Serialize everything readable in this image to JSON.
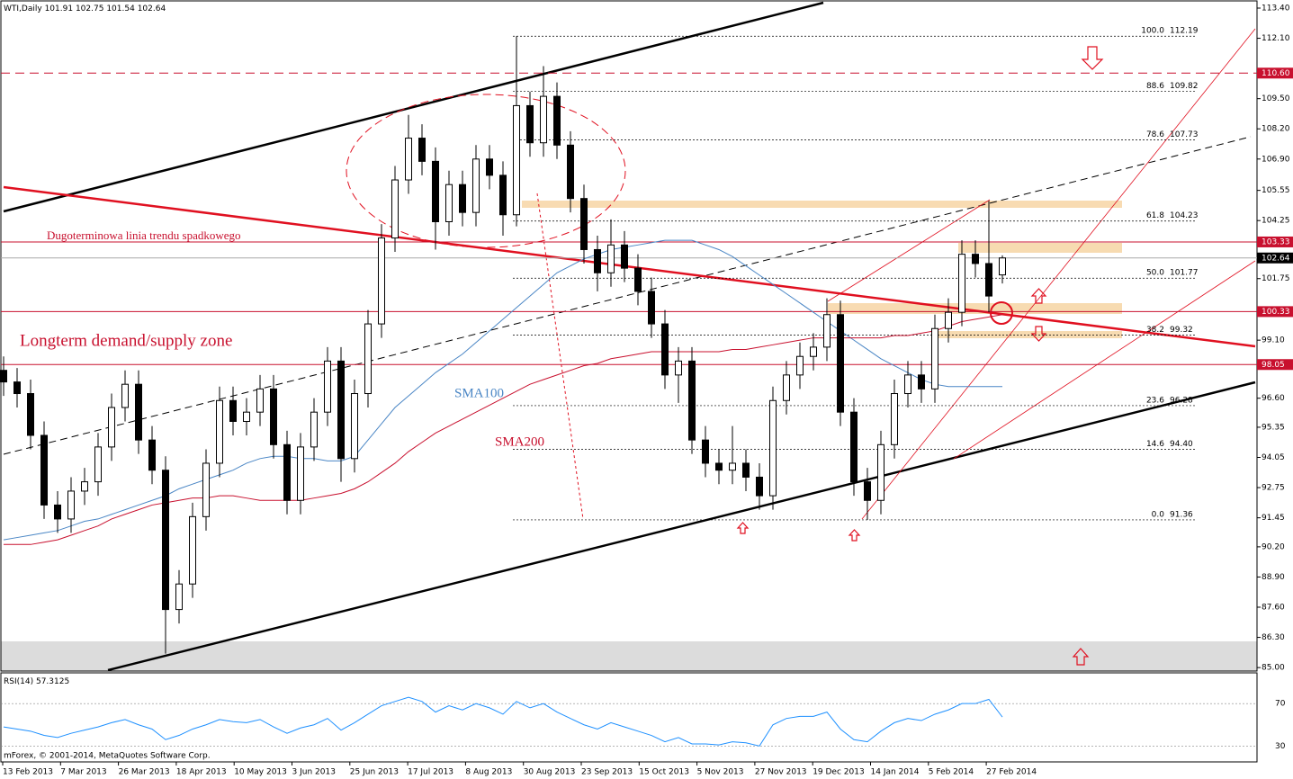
{
  "chart_data": {
    "type": "candlestick",
    "title": "WTI,Daily",
    "open": [
      97.8,
      97.3,
      96.8,
      95.0,
      92.0,
      91.4,
      92.6,
      93.0,
      94.5,
      96.2,
      97.2,
      94.8,
      93.5,
      87.5,
      88.6,
      91.5,
      93.8,
      96.5,
      95.6,
      96.0,
      97.0,
      94.6,
      92.2,
      94.5,
      96.0,
      98.2,
      94.0,
      96.8,
      99.8,
      103.5,
      106.0,
      107.8,
      106.8,
      104.2,
      105.8,
      104.6,
      106.9,
      106.2,
      104.5,
      109.2,
      107.6,
      109.6,
      107.5,
      105.2,
      103.0,
      102.0,
      103.2,
      102.2,
      101.2,
      99.8,
      97.6,
      98.2,
      94.8,
      93.8,
      93.5,
      93.8,
      93.2,
      92.4,
      96.5,
      97.6,
      98.4,
      98.8,
      100.2,
      96.0,
      93.0,
      92.2,
      94.6,
      96.8,
      97.6,
      97.0,
      99.6,
      100.3,
      102.8,
      102.4,
      101.91
    ],
    "high": [
      98.4,
      97.9,
      97.4,
      95.6,
      92.6,
      93.2,
      93.6,
      95.1,
      96.8,
      97.8,
      97.8,
      95.4,
      94.1,
      89.2,
      92.1,
      94.4,
      97.1,
      97.1,
      96.6,
      97.6,
      97.6,
      95.2,
      95.1,
      96.6,
      98.8,
      98.8,
      97.4,
      100.4,
      104.1,
      106.6,
      108.8,
      108.4,
      107.4,
      106.4,
      106.4,
      107.5,
      107.5,
      106.8,
      112.19,
      109.8,
      110.9,
      110.2,
      108.1,
      105.8,
      103.6,
      104.3,
      103.8,
      102.8,
      101.8,
      100.4,
      98.8,
      98.8,
      95.4,
      94.4,
      95.4,
      94.4,
      93.8,
      97.1,
      98.2,
      99.0,
      99.4,
      100.9,
      100.8,
      96.6,
      93.6,
      95.2,
      97.4,
      98.2,
      98.2,
      100.2,
      100.9,
      103.4,
      103.4,
      105.1,
      102.75
    ],
    "low": [
      96.7,
      96.2,
      94.4,
      91.4,
      90.8,
      90.8,
      92.0,
      92.4,
      93.9,
      95.6,
      94.2,
      92.9,
      85.6,
      86.9,
      88.0,
      90.9,
      93.2,
      95.0,
      95.0,
      95.4,
      94.0,
      91.6,
      91.6,
      93.9,
      95.4,
      93.0,
      93.4,
      96.2,
      99.2,
      102.9,
      105.4,
      106.2,
      103.0,
      103.6,
      104.0,
      104.0,
      105.6,
      103.6,
      104.0,
      107.0,
      107.0,
      106.9,
      104.6,
      102.4,
      101.2,
      101.4,
      101.6,
      100.6,
      99.2,
      97.0,
      96.4,
      94.2,
      93.2,
      92.9,
      92.9,
      92.6,
      91.8,
      91.8,
      95.9,
      97.0,
      97.8,
      98.2,
      95.4,
      92.4,
      91.36,
      91.6,
      94.0,
      96.2,
      96.4,
      96.4,
      99.0,
      99.7,
      101.8,
      100.3,
      101.54
    ],
    "close": [
      97.3,
      96.8,
      95.0,
      92.0,
      91.4,
      92.6,
      93.0,
      94.5,
      96.2,
      97.2,
      94.8,
      93.5,
      87.5,
      88.6,
      91.5,
      93.8,
      96.5,
      95.6,
      96.0,
      97.0,
      94.6,
      92.2,
      94.5,
      96.0,
      98.2,
      94.0,
      96.8,
      99.8,
      103.5,
      106.0,
      107.8,
      106.8,
      104.2,
      105.8,
      104.6,
      106.9,
      106.2,
      104.5,
      109.2,
      107.6,
      109.6,
      107.5,
      105.2,
      103.0,
      102.0,
      103.2,
      102.2,
      101.2,
      99.8,
      97.6,
      98.2,
      94.8,
      93.8,
      93.5,
      93.8,
      93.2,
      92.4,
      96.5,
      97.6,
      98.4,
      98.8,
      100.2,
      96.0,
      93.0,
      92.2,
      94.6,
      96.8,
      97.6,
      97.0,
      99.6,
      100.3,
      102.8,
      102.4,
      101.0,
      102.64
    ],
    "x_tick_labels": [
      "13 Feb 2013",
      "7 Mar 2013",
      "26 Mar 2013",
      "18 Apr 2013",
      "10 May 2013",
      "3 Jun 2013",
      "25 Jun 2013",
      "17 Jul 2013",
      "8 Aug 2013",
      "30 Aug 2013",
      "23 Sep 2013",
      "15 Oct 2013",
      "5 Nov 2013",
      "27 Nov 2013",
      "19 Dec 2013",
      "14 Jan 2014",
      "5 Feb 2014",
      "27 Feb 2014"
    ],
    "ylim": [
      84.85,
      113.71
    ],
    "yticks": [
      {
        "value": 113.4,
        "label": "113.40"
      },
      {
        "value": 112.1,
        "label": "112.10"
      },
      {
        "value": 109.5,
        "label": "109.50"
      },
      {
        "value": 108.2,
        "label": "108.20"
      },
      {
        "value": 106.9,
        "label": "106.90"
      },
      105.55,
      {
        "value": 104.25,
        "label": "104.25"
      },
      101.75,
      {
        "value": 99.1,
        "label": "99.10"
      },
      {
        "value": 96.6,
        "label": "96.60"
      },
      95.35,
      94.05,
      92.75,
      91.45,
      {
        "value": 90.2,
        "label": "90.20"
      },
      {
        "value": 88.9,
        "label": "88.90"
      },
      {
        "value": 87.6,
        "label": "87.60"
      },
      {
        "value": 86.3,
        "label": "86.30"
      },
      {
        "value": 85.0,
        "label": "85.00"
      }
    ],
    "levels": [
      {
        "price": {
          "value": 110.6,
          "label": "110.60"
        },
        "color": "#c8102e",
        "dashed": true
      },
      {
        "price": 103.33,
        "color": "#c8102e",
        "dashed": false
      },
      {
        "price": 102.64,
        "color": "#000000",
        "dashed": false
      },
      {
        "price": 100.33,
        "color": "#c8102e",
        "dashed": false
      },
      {
        "price": 98.05,
        "color": "#c8102e",
        "dashed": false
      }
    ],
    "fibonacci": [
      {
        "level": "100.0",
        "price": 112.19
      },
      {
        "level": "88.6",
        "price": 109.82
      },
      {
        "level": "78.6",
        "price": 107.73
      },
      {
        "level": "61.8",
        "price": 104.23
      },
      {
        "level": "50.0",
        "price": 101.77
      },
      {
        "level": "38.2",
        "price": 99.32
      },
      {
        "level": "23.6",
        "price": 96.28
      },
      {
        "level": "14.6",
        "price": {
          "value": 94.4,
          "label": "94.40"
        }
      },
      {
        "level": "0.0",
        "price": 91.36
      }
    ],
    "sma100": {
      "name": "SMA100",
      "color": "#4a86c5",
      "values": [
        90.5,
        90.6,
        90.7,
        90.8,
        90.9,
        91.1,
        91.3,
        91.4,
        91.6,
        91.8,
        92.0,
        92.2,
        92.4,
        92.7,
        92.9,
        93.1,
        93.3,
        93.5,
        93.8,
        94.0,
        94.1,
        94.1,
        94.0,
        94.0,
        93.9,
        93.9,
        94.1,
        94.8,
        95.5,
        96.2,
        96.7,
        97.2,
        97.7,
        98.1,
        98.5,
        99.0,
        99.5,
        100.0,
        100.5,
        101.0,
        101.5,
        102.0,
        102.3,
        102.6,
        102.8,
        103.0,
        103.1,
        103.2,
        103.3,
        103.4,
        103.4,
        103.4,
        103.2,
        103.0,
        102.7,
        102.3,
        101.9,
        101.5,
        101.1,
        100.7,
        100.3,
        99.9,
        99.5,
        99.1,
        98.7,
        98.3,
        98.0,
        97.7,
        97.4,
        97.2,
        97.1,
        97.1,
        97.1,
        97.1,
        97.1
      ]
    },
    "sma200": {
      "name": "SMA200",
      "color": "#c8102e",
      "values": [
        90.3,
        90.3,
        90.3,
        90.4,
        90.5,
        90.7,
        90.9,
        91.1,
        91.4,
        91.6,
        91.8,
        92.0,
        92.1,
        92.2,
        92.3,
        92.3,
        92.4,
        92.4,
        92.3,
        92.2,
        92.2,
        92.2,
        92.2,
        92.3,
        92.4,
        92.5,
        92.7,
        93.0,
        93.4,
        93.8,
        94.3,
        94.7,
        95.1,
        95.4,
        95.7,
        96.0,
        96.3,
        96.6,
        96.9,
        97.2,
        97.4,
        97.6,
        97.8,
        98.0,
        98.1,
        98.3,
        98.4,
        98.5,
        98.6,
        98.6,
        98.6,
        98.6,
        98.6,
        98.6,
        98.7,
        98.7,
        98.8,
        98.9,
        99.0,
        99.1,
        99.2,
        99.2,
        99.2,
        99.2,
        99.2,
        99.2,
        99.3,
        99.3,
        99.4,
        99.5,
        99.7,
        99.9,
        100.0,
        100.1,
        100.2
      ]
    },
    "annotations": {
      "trendline": "Dugoterminowa linia trendu spadkowego",
      "zone": "Longterm demand/supply zone"
    },
    "rsi": {
      "title": "RSI(14)",
      "color": "#1e90ff",
      "ylim": [
        15,
        99
      ],
      "yticks": [
        70,
        30
      ],
      "values": [
        48,
        46,
        44,
        40,
        38,
        42,
        45,
        48,
        52,
        55,
        50,
        46,
        36,
        40,
        46,
        50,
        55,
        53,
        52,
        55,
        48,
        42,
        47,
        50,
        56,
        45,
        52,
        60,
        68,
        72,
        76,
        72,
        62,
        68,
        64,
        70,
        66,
        60,
        72,
        66,
        70,
        62,
        56,
        50,
        46,
        52,
        48,
        44,
        40,
        34,
        38,
        32,
        32,
        31,
        34,
        33,
        30,
        50,
        56,
        58,
        58,
        62,
        46,
        36,
        34,
        44,
        52,
        56,
        54,
        60,
        64,
        70,
        70,
        74,
        57.3125
      ]
    },
    "copyright": "mForex, © 2001-2014, MetaQuotes Software Corp."
  }
}
